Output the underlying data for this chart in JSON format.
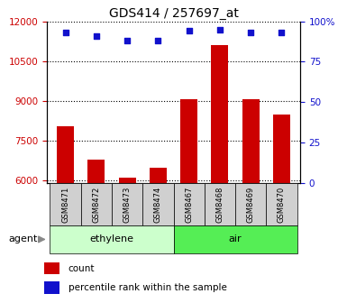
{
  "title": "GDS414 / 257697_at",
  "categories": [
    "GSM8471",
    "GSM8472",
    "GSM8473",
    "GSM8474",
    "GSM8467",
    "GSM8468",
    "GSM8469",
    "GSM8470"
  ],
  "counts": [
    8050,
    6800,
    6120,
    6500,
    9050,
    11100,
    9050,
    8500
  ],
  "percentiles": [
    93,
    91,
    88,
    88,
    94,
    95,
    93,
    93
  ],
  "groups": [
    {
      "label": "ethylene",
      "indices": [
        0,
        3
      ],
      "color": "#ccffcc"
    },
    {
      "label": "air",
      "indices": [
        4,
        7
      ],
      "color": "#55ee55"
    }
  ],
  "ylim_left": [
    5900,
    12000
  ],
  "ylim_right": [
    0,
    100
  ],
  "yticks_left": [
    6000,
    7500,
    9000,
    10500,
    12000
  ],
  "yticks_right": [
    0,
    25,
    50,
    75,
    100
  ],
  "bar_color": "#cc0000",
  "dot_color": "#1111cc",
  "agent_label": "agent",
  "legend_count": "count",
  "legend_percentile": "percentile rank within the sample",
  "bar_width": 0.55,
  "tick_label_color_left": "#cc0000",
  "tick_label_color_right": "#1111cc",
  "gray_box_color": "#d0d0d0"
}
